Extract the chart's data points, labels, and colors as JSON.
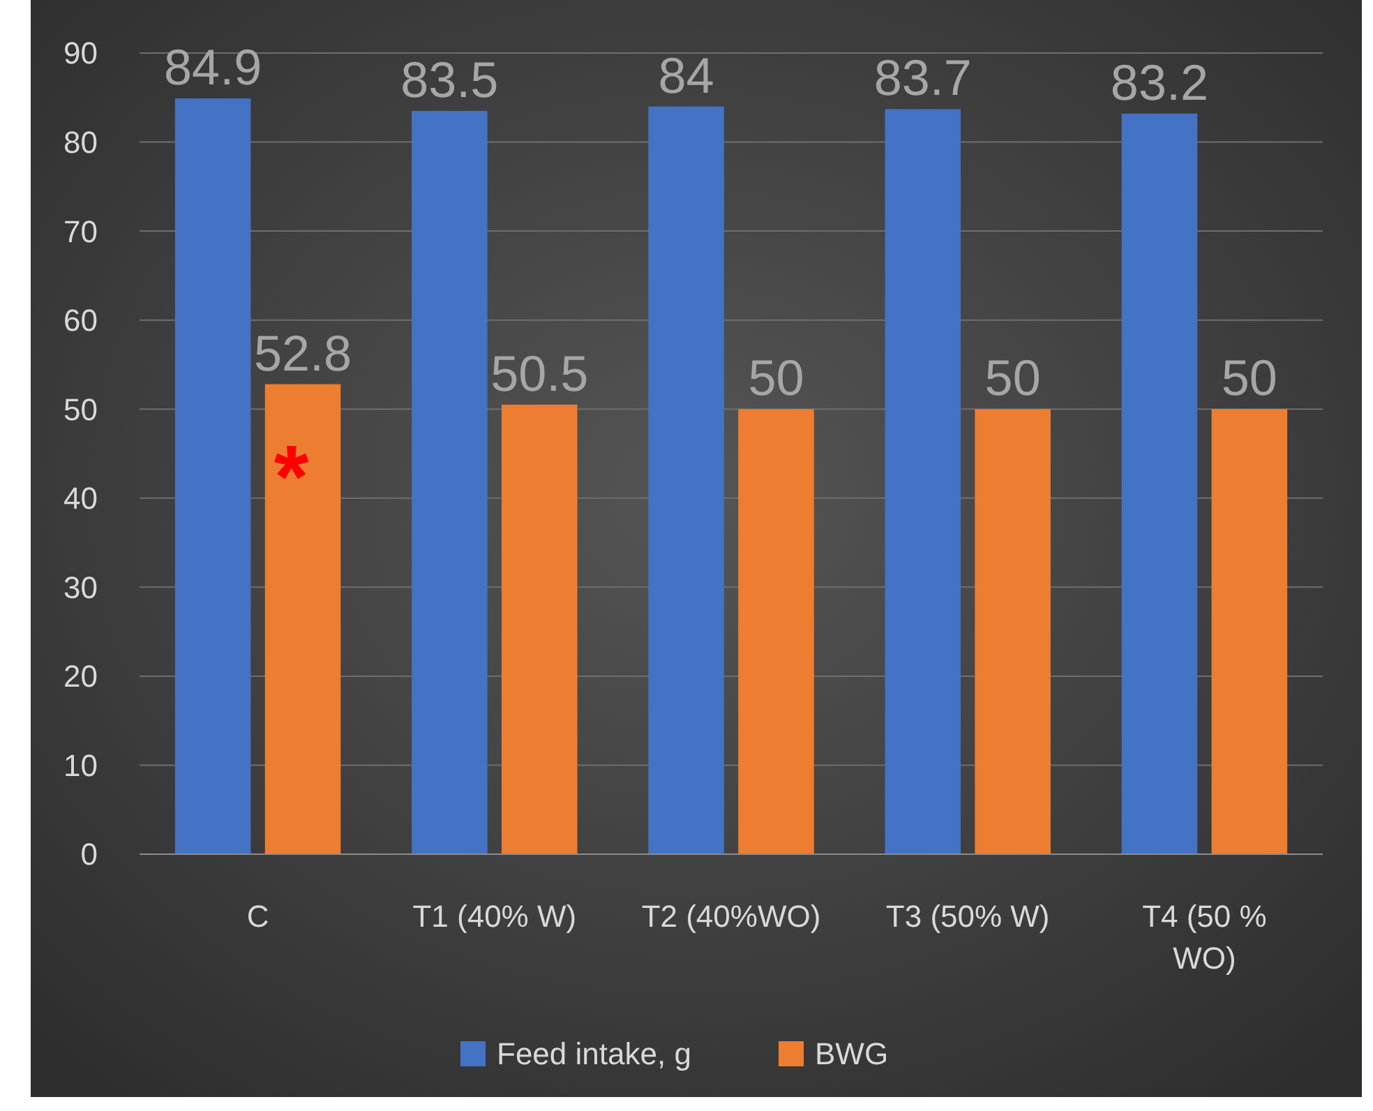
{
  "chart_data": {
    "type": "bar",
    "categories": [
      "C",
      "T1 (40% W)",
      "T2 (40%WO)",
      "T3 (50% W)",
      "T4 (50 % WO)"
    ],
    "series": [
      {
        "name": "Feed intake, g",
        "color": "#4472c4",
        "values": [
          84.9,
          83.5,
          84,
          83.7,
          83.2
        ]
      },
      {
        "name": "BWG",
        "color": "#ed7d31",
        "values": [
          52.8,
          50.5,
          50,
          50,
          50
        ]
      }
    ],
    "ylim": [
      0,
      90
    ],
    "yticks": [
      0,
      10,
      20,
      30,
      40,
      50,
      60,
      70,
      80,
      90
    ],
    "grid": "y",
    "legend": "bottom",
    "data_labels": true,
    "annotations": [
      "*"
    ]
  }
}
